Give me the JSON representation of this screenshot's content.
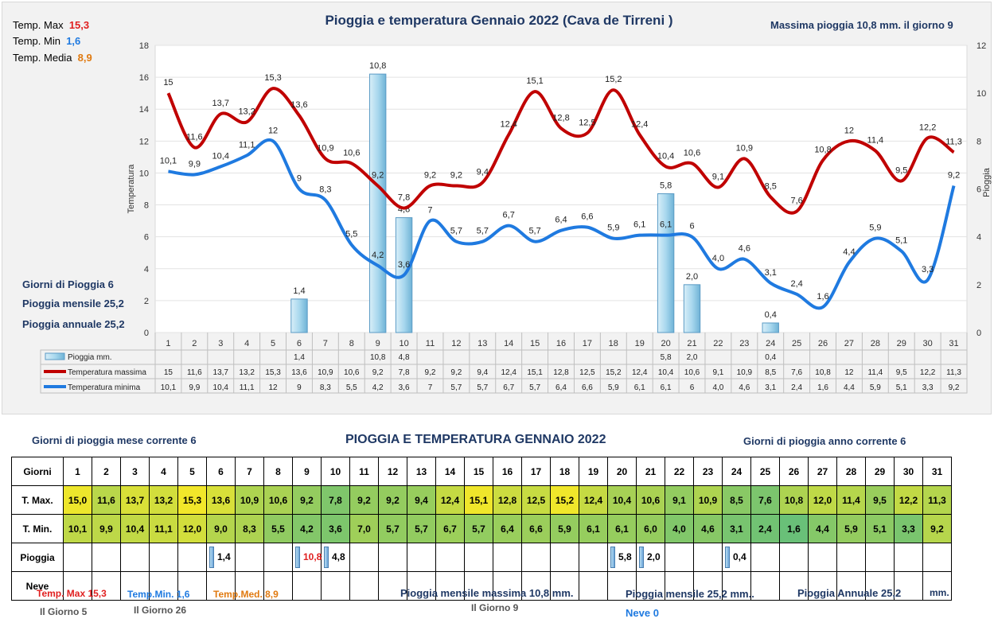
{
  "chart_data": {
    "type": "bar+line",
    "title": "Pioggia e temperatura Gennaio 2022 (Cava de Tirreni )",
    "ylabel_left": "Temperatura",
    "ylabel_right": "Pioggia",
    "ylim_left": [
      0,
      18
    ],
    "ylim_right": [
      0,
      12
    ],
    "yticks_left": [
      "0",
      "2",
      "4",
      "6",
      "8",
      "10",
      "12",
      "14",
      "16",
      "18"
    ],
    "yticks_right": [
      "0",
      "2",
      "4",
      "6",
      "8",
      "10",
      "12"
    ],
    "categories": [
      "1",
      "2",
      "3",
      "4",
      "5",
      "6",
      "7",
      "8",
      "9",
      "10",
      "11",
      "12",
      "13",
      "14",
      "15",
      "16",
      "17",
      "18",
      "19",
      "20",
      "21",
      "22",
      "23",
      "24",
      "25",
      "26",
      "27",
      "28",
      "29",
      "30",
      "31"
    ],
    "series": [
      {
        "name": "Pioggia mm.",
        "type": "bar",
        "color": "#9fd3ea",
        "values": [
          null,
          null,
          null,
          null,
          null,
          1.4,
          null,
          null,
          10.8,
          4.8,
          null,
          null,
          null,
          null,
          null,
          null,
          null,
          null,
          null,
          5.8,
          2.0,
          null,
          null,
          0.4,
          null,
          null,
          null,
          null,
          null,
          null,
          null
        ],
        "labels": [
          "",
          "",
          "",
          "",
          "",
          "1,4",
          "",
          "",
          "10,8",
          "4,8",
          "",
          "",
          "",
          "",
          "",
          "",
          "",
          "",
          "",
          "5,8",
          "2,0",
          "",
          "",
          "0,4",
          "",
          "",
          "",
          "",
          "",
          "",
          ""
        ]
      },
      {
        "name": "Temperatura massima",
        "type": "line",
        "color": "#c00000",
        "values": [
          15,
          11.6,
          13.7,
          13.2,
          15.3,
          13.6,
          10.9,
          10.6,
          9.2,
          7.8,
          9.2,
          9.2,
          9.4,
          12.4,
          15.1,
          12.8,
          12.5,
          15.2,
          12.4,
          10.4,
          10.6,
          9.1,
          10.9,
          8.5,
          7.6,
          10.8,
          12,
          11.4,
          9.5,
          12.2,
          11.3
        ],
        "labels": [
          "15",
          "11,6",
          "13,7",
          "13,2",
          "15,3",
          "13,6",
          "10,9",
          "10,6",
          "9,2",
          "7,8",
          "9,2",
          "9,2",
          "9,4",
          "12,4",
          "15,1",
          "12,8",
          "12,5",
          "15,2",
          "12,4",
          "10,4",
          "10,6",
          "9,1",
          "10,9",
          "8,5",
          "7,6",
          "10,8",
          "12",
          "11,4",
          "9,5",
          "12,2",
          "11,3"
        ]
      },
      {
        "name": "Temperatura minima",
        "type": "line",
        "color": "#1f7ae0",
        "values": [
          10.1,
          9.9,
          10.4,
          11.1,
          12,
          9,
          8.3,
          5.5,
          4.2,
          3.6,
          7,
          5.7,
          5.7,
          6.7,
          5.7,
          6.4,
          6.6,
          5.9,
          6.1,
          6.1,
          6,
          4.0,
          4.6,
          3.1,
          2.4,
          1.6,
          4.4,
          5.9,
          5.1,
          3.3,
          9.2
        ],
        "labels": [
          "10,1",
          "9,9",
          "10,4",
          "11,1",
          "12",
          "9",
          "8,3",
          "5,5",
          "4,2",
          "3,6",
          "7",
          "5,7",
          "5,7",
          "6,7",
          "5,7",
          "6,4",
          "6,6",
          "5,9",
          "6,1",
          "6,1",
          "6",
          "4,0",
          "4,6",
          "3,1",
          "2,4",
          "1,6",
          "4,4",
          "5,9",
          "5,1",
          "3,3",
          "9,2"
        ]
      }
    ]
  },
  "summary_left": {
    "tmax_label": "Temp. Max",
    "tmax_value": "15,3",
    "tmin_label": "Temp. Min",
    "tmin_value": "1,6",
    "tmedia_label": "Temp. Media",
    "tmedia_value": "8,9",
    "giorni_pioggia": "Giorni di Pioggia  6",
    "pioggia_mensile": "Pioggia mensile  25,2",
    "pioggia_annuale": "Pioggia annuale  25,2"
  },
  "summary_right": {
    "massima_pioggia": "Massima pioggia  10,8 mm. il giorno   9"
  },
  "table_section": {
    "title": "PIOGGIA E TEMPERATURA GENNAIO 2022",
    "giorni_mese": "Giorni di pioggia mese corrente   6",
    "giorni_anno": "Giorni di pioggia anno corrente  6",
    "row_labels": [
      "Giorni",
      "T. Max.",
      "T. Min.",
      "Pioggia",
      "Neve"
    ],
    "tmax": [
      "15,0",
      "11,6",
      "13,7",
      "13,2",
      "15,3",
      "13,6",
      "10,9",
      "10,6",
      "9,2",
      "7,8",
      "9,2",
      "9,2",
      "9,4",
      "12,4",
      "15,1",
      "12,8",
      "12,5",
      "15,2",
      "12,4",
      "10,4",
      "10,6",
      "9,1",
      "10,9",
      "8,5",
      "7,6",
      "10,8",
      "12,0",
      "11,4",
      "9,5",
      "12,2",
      "11,3"
    ],
    "tmin": [
      "10,1",
      "9,9",
      "10,4",
      "11,1",
      "12,0",
      "9,0",
      "8,3",
      "5,5",
      "4,2",
      "3,6",
      "7,0",
      "5,7",
      "5,7",
      "6,7",
      "5,7",
      "6,4",
      "6,6",
      "5,9",
      "6,1",
      "6,1",
      "6,0",
      "4,0",
      "4,6",
      "3,1",
      "2,4",
      "1,6",
      "4,4",
      "5,9",
      "5,1",
      "3,3",
      "9,2"
    ],
    "pioggia": [
      "",
      "",
      "",
      "",
      "",
      "1,4",
      "",
      "",
      "10,8",
      "4,8",
      "",
      "",
      "",
      "",
      "",
      "",
      "",
      "",
      "",
      "5,8",
      "2,0",
      "",
      "",
      "0,4",
      "",
      "",
      "",
      "",
      "",
      "",
      ""
    ],
    "neve": [
      "",
      "",
      "",
      "",
      "",
      "",
      "",
      "",
      "",
      "",
      "",
      "",
      "",
      "",
      "",
      "",
      "",
      "",
      "",
      "",
      "",
      "",
      "",
      "",
      "",
      "",
      "",
      "",
      "",
      "",
      ""
    ]
  },
  "footer": {
    "tmax": "Temp. Max 15,3",
    "tmax_day": "Il Giorno   5",
    "tmin": "Temp.Min.  1,6",
    "tmin_day": "Il Giorno 26",
    "tmed": "Temp.Med. 8,9",
    "pioggia_max": "Pioggia mensile massima 10,8   mm.",
    "pioggia_max_day": "Il Giorno  9",
    "pioggia_mensile": "Pioggia mensile  25,2   mm..",
    "pioggia_annuale": "Pioggia Annuale  25,2",
    "pioggia_annuale_unit": "mm.",
    "neve": "Neve 0"
  }
}
